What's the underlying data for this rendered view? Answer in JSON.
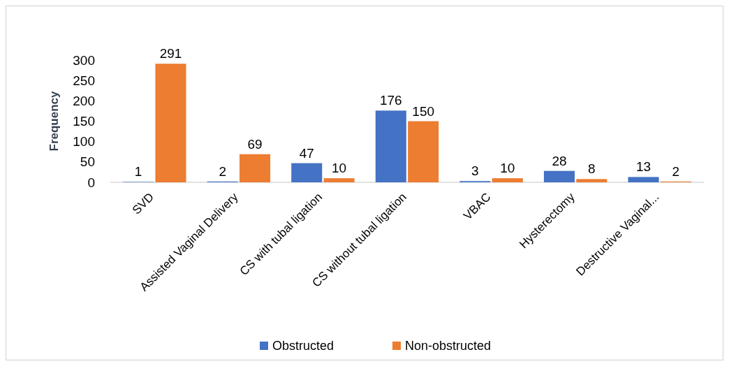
{
  "chart_data": {
    "type": "bar",
    "ylabel": "Frequency",
    "categories": [
      "SVD",
      "Assisted Vaginal Delivery",
      "CS with tubal ligation",
      "CS without tubal ligation",
      "VBAC",
      "Hysterectomy",
      "Destructive Vaginal..."
    ],
    "series": [
      {
        "name": "Obstructed",
        "color": "#4472c4",
        "values": [
          1,
          2,
          47,
          176,
          3,
          28,
          13
        ]
      },
      {
        "name": "Non-obstructed",
        "color": "#ed7d31",
        "values": [
          291,
          69,
          10,
          150,
          10,
          8,
          2
        ]
      }
    ],
    "ylim": [
      0,
      300
    ],
    "yticks": [
      0,
      50,
      100,
      150,
      200,
      250,
      300
    ],
    "data_labels": true,
    "legend": "bottom",
    "grid": false
  }
}
